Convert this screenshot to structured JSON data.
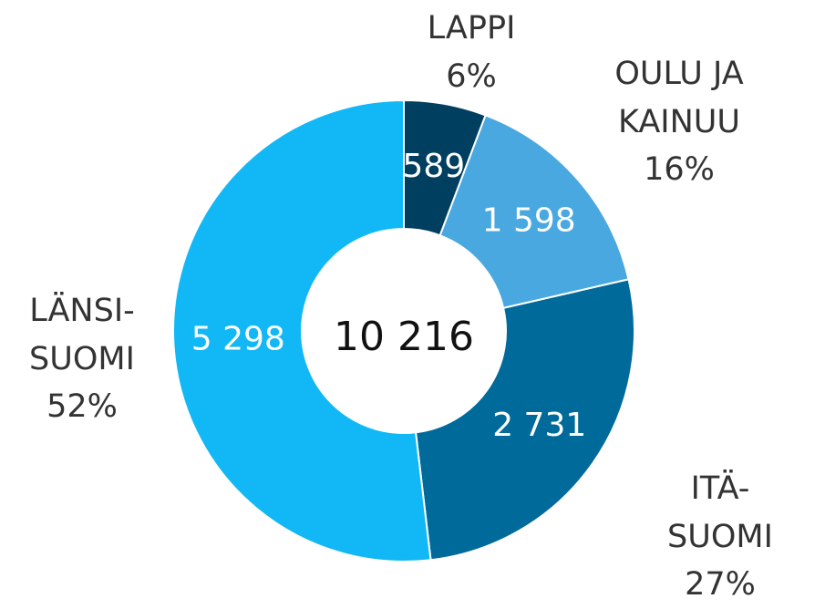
{
  "chart_data": {
    "type": "donut",
    "categories": [
      "LAPPI",
      "OULU JA\nKAINUU",
      "ITÄ-SUOMI",
      "LÄNSI-\nSUOMI"
    ],
    "values": [
      589,
      1598,
      2731,
      5298
    ],
    "value_labels": [
      "589",
      "1 598",
      "2 731",
      "5 298"
    ],
    "percentages": [
      6,
      16,
      27,
      52
    ],
    "percentage_labels": [
      "6%",
      "16%",
      "27%",
      "52%"
    ],
    "colors": [
      "#003f5f",
      "#4aa8e0",
      "#006a9a",
      "#12b8f5"
    ],
    "center_text": "10 216"
  }
}
